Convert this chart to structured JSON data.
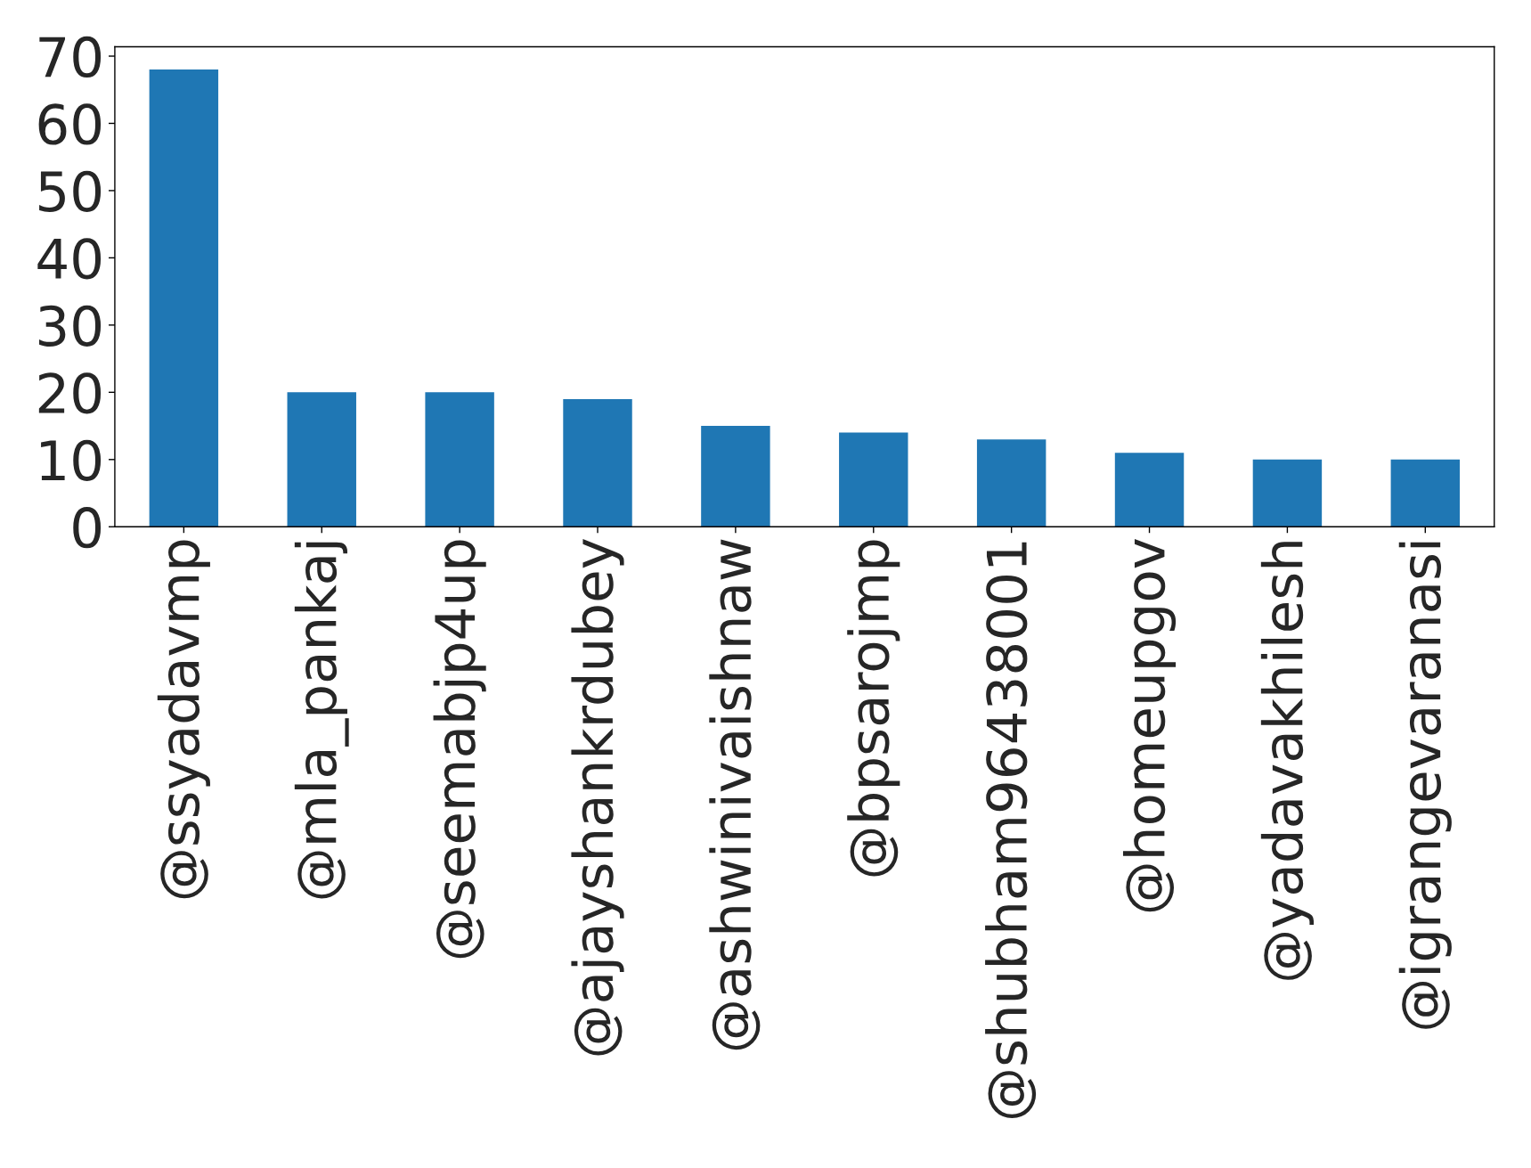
{
  "chart_data": {
    "type": "bar",
    "categories": [
      "@ssyadavmp",
      "@mla_pankaj",
      "@seemabjp4up",
      "@ajayshankrdubey",
      "@ashwinivaishnaw",
      "@bpsarojmp",
      "@shubham96438001",
      "@homeupgov",
      "@yadavakhilesh",
      "@igrangevaranasi"
    ],
    "values": [
      68,
      20,
      20,
      19,
      15,
      14,
      13,
      11,
      10,
      10
    ],
    "color": "#1f77b4",
    "ylim": [
      0,
      71.4
    ],
    "yticks": [
      0,
      10,
      20,
      30,
      40,
      50,
      60,
      70
    ],
    "grid": false,
    "legend": false
  }
}
